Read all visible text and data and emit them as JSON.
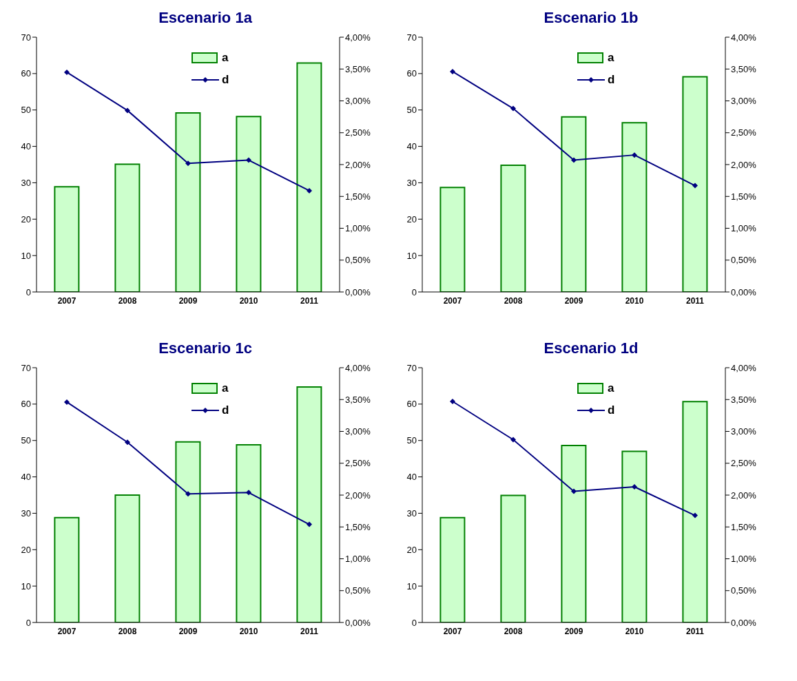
{
  "chart_data": [
    {
      "type": "bar",
      "title": "Escenario 1a",
      "categories": [
        "2007",
        "2008",
        "2009",
        "2010",
        "2011"
      ],
      "series": [
        {
          "name": "a",
          "color": "#ccffcc",
          "values": [
            28.9,
            35.1,
            49.2,
            48.2,
            62.9
          ]
        },
        {
          "name": "d",
          "type": "line",
          "axis": "y2",
          "color": "#000080",
          "values": [
            3.45,
            2.85,
            2.02,
            2.07,
            1.59
          ]
        }
      ],
      "ylim": [
        0,
        70
      ],
      "yticks": [
        0,
        10,
        20,
        30,
        40,
        50,
        60,
        70
      ],
      "y2lim": [
        0,
        4
      ],
      "y2ticks": [
        {
          "value": 0,
          "label": "0,00%"
        },
        {
          "value": 0.5,
          "label": "0,50%"
        },
        {
          "value": 1,
          "label": "1,00%"
        },
        {
          "value": 1.5,
          "label": "1,50%"
        },
        {
          "value": 2,
          "label": "2,00%"
        },
        {
          "value": 2.5,
          "label": "2,50%"
        },
        {
          "value": 3,
          "label": "3,00%"
        },
        {
          "value": 3.5,
          "label": "3,50%"
        },
        {
          "value": 4,
          "label": "4,00%"
        }
      ],
      "legend": "top",
      "marker": "diamond",
      "grid": false
    },
    {
      "type": "bar",
      "title": "Escenario 1b",
      "categories": [
        "2007",
        "2008",
        "2009",
        "2010",
        "2011"
      ],
      "series": [
        {
          "name": "a",
          "color": "#ccffcc",
          "values": [
            28.7,
            34.8,
            48.1,
            46.5,
            59.1
          ]
        },
        {
          "name": "d",
          "type": "line",
          "axis": "y2",
          "color": "#000080",
          "values": [
            3.46,
            2.88,
            2.07,
            2.15,
            1.67
          ]
        }
      ],
      "ylim": [
        0,
        70
      ],
      "yticks": [
        0,
        10,
        20,
        30,
        40,
        50,
        60,
        70
      ],
      "y2lim": [
        0,
        4
      ],
      "y2ticks": [
        {
          "value": 0,
          "label": "0,00%"
        },
        {
          "value": 0.5,
          "label": "0,50%"
        },
        {
          "value": 1,
          "label": "1,00%"
        },
        {
          "value": 1.5,
          "label": "1,50%"
        },
        {
          "value": 2,
          "label": "2,00%"
        },
        {
          "value": 2.5,
          "label": "2,50%"
        },
        {
          "value": 3,
          "label": "3,00%"
        },
        {
          "value": 3.5,
          "label": "3,50%"
        },
        {
          "value": 4,
          "label": "4,00%"
        }
      ],
      "legend": "top",
      "marker": "diamond",
      "grid": false
    },
    {
      "type": "bar",
      "title": "Escenario 1c",
      "categories": [
        "2007",
        "2008",
        "2009",
        "2010",
        "2011"
      ],
      "series": [
        {
          "name": "a",
          "color": "#ccffcc",
          "values": [
            28.8,
            35.0,
            49.6,
            48.8,
            64.7
          ]
        },
        {
          "name": "d",
          "type": "line",
          "axis": "y2",
          "color": "#000080",
          "values": [
            3.46,
            2.83,
            2.02,
            2.04,
            1.54
          ]
        }
      ],
      "ylim": [
        0,
        70
      ],
      "yticks": [
        0,
        10,
        20,
        30,
        40,
        50,
        60,
        70
      ],
      "y2lim": [
        0,
        4
      ],
      "y2ticks": [
        {
          "value": 0,
          "label": "0,00%"
        },
        {
          "value": 0.5,
          "label": "0,50%"
        },
        {
          "value": 1,
          "label": "1,00%"
        },
        {
          "value": 1.5,
          "label": "1,50%"
        },
        {
          "value": 2,
          "label": "2,00%"
        },
        {
          "value": 2.5,
          "label": "2,50%"
        },
        {
          "value": 3,
          "label": "3,00%"
        },
        {
          "value": 3.5,
          "label": "3,50%"
        },
        {
          "value": 4,
          "label": "4,00%"
        }
      ],
      "legend": "top",
      "marker": "diamond",
      "grid": false
    },
    {
      "type": "bar",
      "title": "Escenario 1d",
      "categories": [
        "2007",
        "2008",
        "2009",
        "2010",
        "2011"
      ],
      "series": [
        {
          "name": "a",
          "color": "#ccffcc",
          "values": [
            28.8,
            34.9,
            48.6,
            47.0,
            60.7
          ]
        },
        {
          "name": "d",
          "type": "line",
          "axis": "y2",
          "color": "#000080",
          "values": [
            3.47,
            2.87,
            2.06,
            2.13,
            1.68
          ]
        }
      ],
      "ylim": [
        0,
        70
      ],
      "yticks": [
        0,
        10,
        20,
        30,
        40,
        50,
        60,
        70
      ],
      "y2lim": [
        0,
        4
      ],
      "y2ticks": [
        {
          "value": 0,
          "label": "0,00%"
        },
        {
          "value": 0.5,
          "label": "0,50%"
        },
        {
          "value": 1,
          "label": "1,00%"
        },
        {
          "value": 1.5,
          "label": "1,50%"
        },
        {
          "value": 2,
          "label": "2,00%"
        },
        {
          "value": 2.5,
          "label": "2,50%"
        },
        {
          "value": 3,
          "label": "3,00%"
        },
        {
          "value": 3.5,
          "label": "3,50%"
        },
        {
          "value": 4,
          "label": "4,00%"
        }
      ],
      "legend": "top",
      "marker": "diamond",
      "grid": false
    }
  ]
}
